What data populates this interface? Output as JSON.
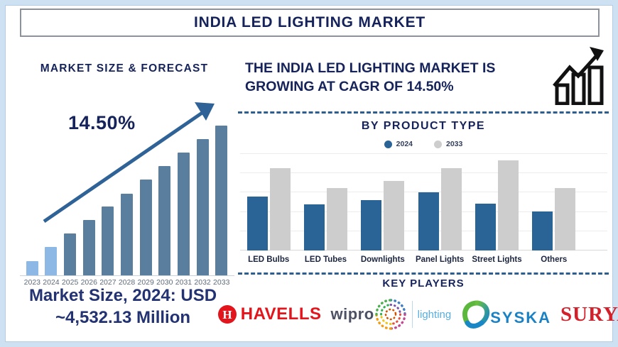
{
  "title": "INDIA LED LIGHTING MARKET",
  "left_section": {
    "heading": "MARKET SIZE & FORECAST",
    "growth_label": "14.50%",
    "market_size_lines": [
      "Market Size, 2024: USD",
      "~4,532.13 Million"
    ]
  },
  "right_section": {
    "headline_lines": [
      "THE INDIA LED LIGHTING MARKET IS",
      "GROWING AT CAGR OF 14.50%"
    ],
    "key_players_heading": "KEY PLAYERS",
    "players": [
      {
        "name": "HAVELLS",
        "text_color": "#e2141c"
      },
      {
        "name": "wipro",
        "suffix": "lighting",
        "text_color": "#4d5164",
        "suffix_color": "#58aede"
      },
      {
        "name": "SYSKA",
        "text_color": "#1a82c4"
      },
      {
        "name": "SURYA",
        "text_color": "#d4202a"
      }
    ]
  },
  "chart_data": [
    {
      "type": "bar",
      "title": "MARKET SIZE & FORECAST",
      "categories": [
        "2023",
        "2024",
        "2025",
        "2026",
        "2027",
        "2028",
        "2029",
        "2030",
        "2031",
        "2032",
        "2033"
      ],
      "values_pct_of_max": [
        9.5,
        19,
        28,
        37,
        46,
        54.5,
        64,
        73,
        82,
        91,
        100
      ],
      "annotation": "14.50%",
      "note": "y-axis unlabeled; bar heights relative to 2033 bar; 2023 and 2024 bars highlighted light blue; upward trend arrow overlay",
      "highlight_indices": [
        0,
        1
      ],
      "highlight_color": "#8db7e4",
      "bar_color": "#5a7e9e",
      "xlabel": "",
      "ylabel": "",
      "grid": false
    },
    {
      "type": "bar",
      "title": "BY PRODUCT TYPE",
      "categories": [
        "LED Bulbs",
        "LED Tubes",
        "Downlights",
        "Panel Lights",
        "Street Lights",
        "Others"
      ],
      "series": [
        {
          "name": "2024",
          "color": "#2a6496",
          "values_pct_of_max": [
            60,
            51,
            56,
            65,
            52,
            43
          ]
        },
        {
          "name": "2033",
          "color": "#cdcdcd",
          "values_pct_of_max": [
            91,
            69,
            77,
            91,
            100,
            69
          ]
        }
      ],
      "legend_position": "top",
      "grid": true,
      "gridline_count": 5,
      "note": "y-axis unlabeled; values relative to tallest bar (Street Lights 2033)"
    }
  ]
}
